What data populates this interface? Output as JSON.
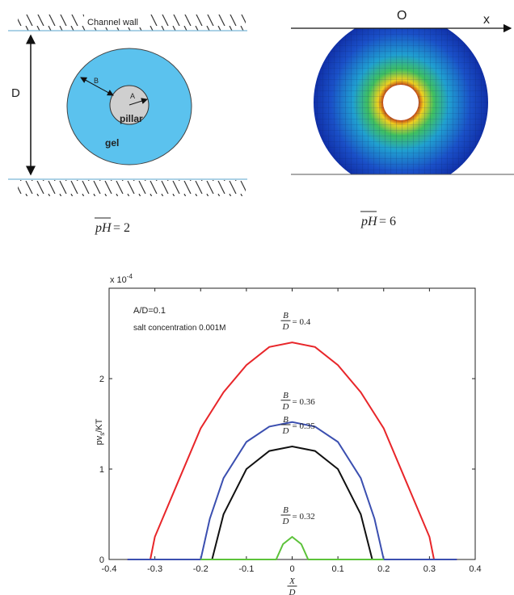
{
  "diagram_left": {
    "wall_label": "Channel wall",
    "d_label": "D",
    "b_label": "B",
    "a_label": "A",
    "pillar_label": "pillar",
    "gel_label": "gel",
    "caption": {
      "var": "pH",
      "value": "= 2"
    }
  },
  "diagram_right": {
    "origin_label": "O",
    "axis_label": "x",
    "caption": {
      "var": "pH",
      "value": "= 6"
    }
  },
  "chart_data": {
    "type": "line",
    "multiplier": {
      "base": "x 10",
      "exp": "-4"
    },
    "annotations": [
      "A/D=0.1",
      "salt concentration 0.001M"
    ],
    "ylabel": {
      "main": "pv",
      "sub": "s",
      "rest": "/KT"
    },
    "xlabel": {
      "numerator": "X",
      "denominator": "D"
    },
    "xlim": [
      -0.4,
      0.4
    ],
    "xticks": [
      -0.4,
      -0.3,
      -0.2,
      -0.1,
      0,
      0.1,
      0.2,
      0.3,
      0.4
    ],
    "ylim": [
      0,
      3
    ],
    "yticks": [
      0,
      1,
      2
    ],
    "series": [
      {
        "color": "#e8262a",
        "label": {
          "numerator": "B",
          "denominator": "D",
          "value": "= 0.4"
        },
        "x": [
          -0.36,
          -0.31,
          -0.3,
          -0.25,
          -0.2,
          -0.15,
          -0.1,
          -0.05,
          0,
          0.05,
          0.1,
          0.15,
          0.2,
          0.25,
          0.3,
          0.31,
          0.36
        ],
        "values": [
          0,
          0,
          0.25,
          0.85,
          1.45,
          1.85,
          2.15,
          2.35,
          2.4,
          2.35,
          2.15,
          1.85,
          1.45,
          0.85,
          0.25,
          0,
          0
        ]
      },
      {
        "color": "#3b4fb0",
        "label": {
          "numerator": "B",
          "denominator": "D",
          "value": "= 0.36"
        },
        "x": [
          -0.36,
          -0.2,
          -0.18,
          -0.15,
          -0.1,
          -0.05,
          0,
          0.05,
          0.1,
          0.15,
          0.18,
          0.2,
          0.36
        ],
        "values": [
          0,
          0,
          0.45,
          0.9,
          1.3,
          1.47,
          1.52,
          1.47,
          1.3,
          0.9,
          0.45,
          0,
          0
        ]
      },
      {
        "color": "#111111",
        "label": {
          "numerator": "B",
          "denominator": "D",
          "value": "= 0.35"
        },
        "x": [
          -0.175,
          -0.15,
          -0.1,
          -0.05,
          0,
          0.05,
          0.1,
          0.15,
          0.175
        ],
        "values": [
          0,
          0.5,
          1.0,
          1.2,
          1.25,
          1.2,
          1.0,
          0.5,
          0
        ]
      },
      {
        "color": "#5cc23a",
        "label": {
          "numerator": "B",
          "denominator": "D",
          "value": "= 0.32"
        },
        "x": [
          -0.2,
          -0.035,
          -0.02,
          0,
          0.02,
          0.035,
          0.2
        ],
        "values": [
          0,
          0,
          0.17,
          0.25,
          0.17,
          0,
          0
        ]
      }
    ]
  }
}
